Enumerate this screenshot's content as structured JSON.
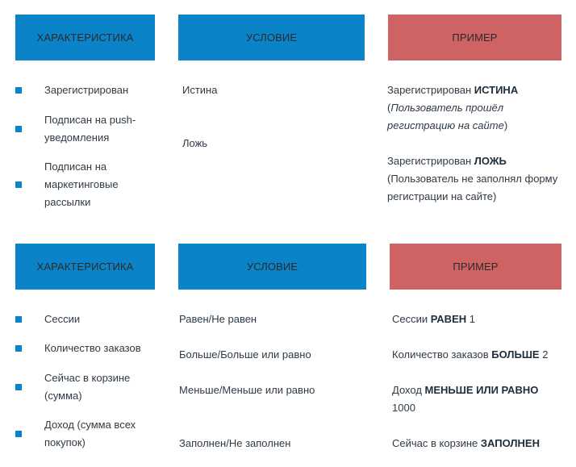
{
  "table1": {
    "headers": {
      "characteristic": "ХАРАКТЕРИСТИКА",
      "condition": "УСЛОВИЕ",
      "example": "ПРИМЕР"
    },
    "characteristics": [
      "Зарегистрирован",
      "Подписан на push-уведомления",
      "Подписан на маркетинговые рассылки"
    ],
    "conditions": [
      "Истина",
      "Ложь"
    ],
    "examples": [
      {
        "prefix": "Зарегистрирован ",
        "bold": "ИСТИНА",
        "note_open": "(",
        "note_italic": "Пользователь прошёл регистрацию на сайте",
        "note_close": ")"
      },
      {
        "prefix": "Зарегистрирован ",
        "bold": "ЛОЖЬ",
        "note": "(Пользователь не заполнял форму регистрации на сайте)"
      }
    ]
  },
  "table2": {
    "headers": {
      "characteristic": "ХАРАКТЕРИСТИКА",
      "condition": "УСЛОВИЕ",
      "example": "ПРИМЕР"
    },
    "characteristics": [
      "Сессии",
      "Количество заказов",
      "Сейчас в корзине (сумма)",
      "Доход (сумма всех покупок)"
    ],
    "conditions": [
      "Равен/Не равен",
      "Больше/Больше или равно",
      "Меньше/Меньше или равно",
      "Заполнен/Не заполнен"
    ],
    "examples": [
      {
        "prefix": "Сессии ",
        "bold": "РАВЕН",
        "suffix": " 1"
      },
      {
        "prefix": "Количество заказов ",
        "bold": "БОЛЬШЕ",
        "suffix": " 2"
      },
      {
        "prefix": "Доход ",
        "bold": "МЕНЬШЕ ИЛИ РАВНО",
        "suffix": " 1000"
      },
      {
        "prefix": "Сейчас в корзине ",
        "bold": "ЗАПОЛНЕН",
        "suffix": ""
      }
    ]
  },
  "colors": {
    "header_blue": "#0a83c9",
    "header_red": "#cf6363",
    "bullet": "#0a83c9"
  }
}
